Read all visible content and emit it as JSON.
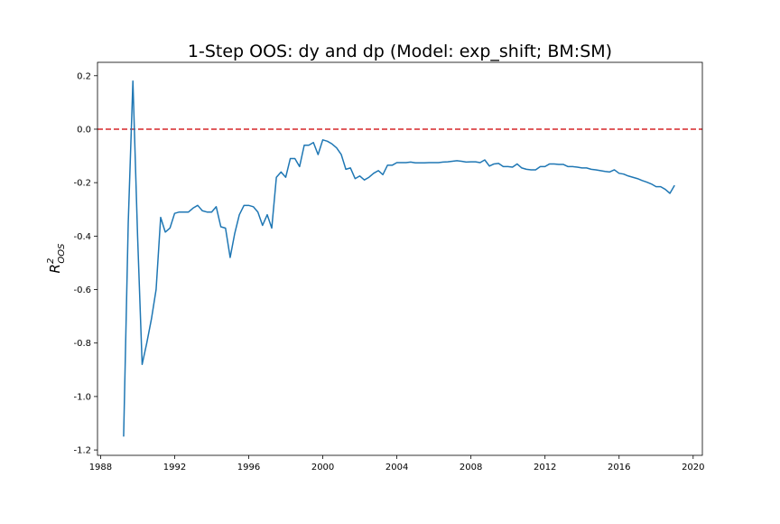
{
  "chart_data": {
    "type": "line",
    "title": "1-Step OOS: dy and dp (Model: exp_shift; BM:SM)",
    "xlabel": "",
    "ylabel_main": "R",
    "ylabel_sup": "2",
    "ylabel_sub": "OOS",
    "xlim": [
      "1987-11-01",
      "2020-07-01"
    ],
    "ylim": [
      -1.22,
      0.25
    ],
    "x_ticks": [
      "1988",
      "1992",
      "1996",
      "2000",
      "2004",
      "2008",
      "2012",
      "2016",
      "2020"
    ],
    "y_ticks": [
      "0.2",
      "0.0",
      "-0.2",
      "-0.4",
      "-0.6",
      "-0.8",
      "-1.0",
      "-1.2"
    ],
    "y_tick_values": [
      0.2,
      0.0,
      -0.2,
      -0.4,
      -0.6,
      -0.8,
      -1.0,
      -1.2
    ],
    "grid": false,
    "legend": null,
    "reference_line": {
      "y": 0.0,
      "color": "#d62728",
      "style": "dashed"
    },
    "series": [
      {
        "color": "#1f77b4",
        "x": [
          "1989-03-31",
          "1989-06-30",
          "1989-09-30",
          "1989-12-31",
          "1990-03-31",
          "1990-06-30",
          "1990-09-30",
          "1990-12-31",
          "1991-03-31",
          "1991-06-30",
          "1991-09-30",
          "1991-12-31",
          "1992-03-31",
          "1992-06-30",
          "1992-09-30",
          "1992-12-31",
          "1993-03-31",
          "1993-06-30",
          "1993-09-30",
          "1993-12-31",
          "1994-03-31",
          "1994-06-30",
          "1994-09-30",
          "1994-12-31",
          "1995-03-31",
          "1995-06-30",
          "1995-09-30",
          "1995-12-31",
          "1996-03-31",
          "1996-06-30",
          "1996-09-30",
          "1996-12-31",
          "1997-03-31",
          "1997-06-30",
          "1997-09-30",
          "1997-12-31",
          "1998-03-31",
          "1998-06-30",
          "1998-09-30",
          "1998-12-31",
          "1999-03-31",
          "1999-06-30",
          "1999-09-30",
          "1999-12-31",
          "2000-03-31",
          "2000-06-30",
          "2000-09-30",
          "2000-12-31",
          "2001-03-31",
          "2001-06-30",
          "2001-09-30",
          "2001-12-31",
          "2002-03-31",
          "2002-06-30",
          "2002-09-30",
          "2002-12-31",
          "2003-03-31",
          "2003-06-30",
          "2003-09-30",
          "2003-12-31",
          "2004-03-31",
          "2004-06-30",
          "2004-09-30",
          "2004-12-31",
          "2005-03-31",
          "2005-06-30",
          "2005-09-30",
          "2005-12-31",
          "2006-03-31",
          "2006-06-30",
          "2006-09-30",
          "2006-12-31",
          "2007-03-31",
          "2007-06-30",
          "2007-09-30",
          "2007-12-31",
          "2008-03-31",
          "2008-06-30",
          "2008-09-30",
          "2008-12-31",
          "2009-03-31",
          "2009-06-30",
          "2009-09-30",
          "2009-12-31",
          "2010-03-31",
          "2010-06-30",
          "2010-09-30",
          "2010-12-31",
          "2011-03-31",
          "2011-06-30",
          "2011-09-30",
          "2011-12-31",
          "2012-03-31",
          "2012-06-30",
          "2012-09-30",
          "2012-12-31",
          "2013-03-31",
          "2013-06-30",
          "2013-09-30",
          "2013-12-31",
          "2014-03-31",
          "2014-06-30",
          "2014-09-30",
          "2014-12-31",
          "2015-03-31",
          "2015-06-30",
          "2015-09-30",
          "2015-12-31",
          "2016-03-31",
          "2016-06-30",
          "2016-09-30",
          "2016-12-31",
          "2017-03-31",
          "2017-06-30",
          "2017-09-30",
          "2017-12-31",
          "2018-03-31",
          "2018-06-30",
          "2018-09-30",
          "2018-12-31"
        ],
        "y": [
          -1.15,
          -0.35,
          0.18,
          -0.4,
          -0.88,
          -0.8,
          -0.71,
          -0.6,
          -0.33,
          -0.385,
          -0.37,
          -0.315,
          -0.31,
          -0.31,
          -0.31,
          -0.295,
          -0.285,
          -0.305,
          -0.31,
          -0.31,
          -0.29,
          -0.365,
          -0.37,
          -0.48,
          -0.39,
          -0.32,
          -0.285,
          -0.285,
          -0.29,
          -0.31,
          -0.36,
          -0.32,
          -0.37,
          -0.18,
          -0.16,
          -0.18,
          -0.11,
          -0.11,
          -0.14,
          -0.06,
          -0.06,
          -0.05,
          -0.095,
          -0.04,
          -0.045,
          -0.055,
          -0.07,
          -0.095,
          -0.15,
          -0.145,
          -0.185,
          -0.175,
          -0.19,
          -0.18,
          -0.165,
          -0.155,
          -0.17,
          -0.135,
          -0.135,
          -0.125,
          -0.125,
          -0.125,
          -0.123,
          -0.126,
          -0.126,
          -0.126,
          -0.125,
          -0.125,
          -0.125,
          -0.123,
          -0.122,
          -0.12,
          -0.118,
          -0.12,
          -0.123,
          -0.122,
          -0.122,
          -0.125,
          -0.115,
          -0.138,
          -0.13,
          -0.128,
          -0.14,
          -0.14,
          -0.142,
          -0.13,
          -0.145,
          -0.15,
          -0.152,
          -0.152,
          -0.14,
          -0.14,
          -0.13,
          -0.13,
          -0.132,
          -0.132,
          -0.14,
          -0.14,
          -0.142,
          -0.145,
          -0.145,
          -0.15,
          -0.152,
          -0.155,
          -0.158,
          -0.16,
          -0.152,
          -0.165,
          -0.168,
          -0.175,
          -0.18,
          -0.185,
          -0.192,
          -0.198,
          -0.205,
          -0.215,
          -0.215,
          -0.225,
          -0.24,
          -0.21
        ]
      }
    ]
  }
}
